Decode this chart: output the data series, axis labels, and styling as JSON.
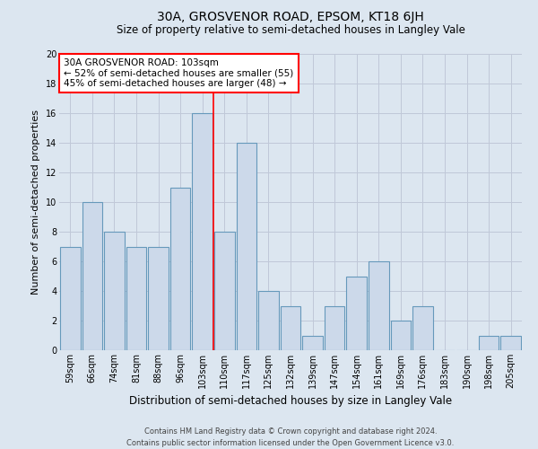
{
  "title": "30A, GROSVENOR ROAD, EPSOM, KT18 6JH",
  "subtitle": "Size of property relative to semi-detached houses in Langley Vale",
  "xlabel": "Distribution of semi-detached houses by size in Langley Vale",
  "ylabel": "Number of semi-detached properties",
  "footer_line1": "Contains HM Land Registry data © Crown copyright and database right 2024.",
  "footer_line2": "Contains public sector information licensed under the Open Government Licence v3.0.",
  "bin_labels": [
    "59sqm",
    "66sqm",
    "74sqm",
    "81sqm",
    "88sqm",
    "96sqm",
    "103sqm",
    "110sqm",
    "117sqm",
    "125sqm",
    "132sqm",
    "139sqm",
    "147sqm",
    "154sqm",
    "161sqm",
    "169sqm",
    "176sqm",
    "183sqm",
    "190sqm",
    "198sqm",
    "205sqm"
  ],
  "bar_values": [
    7,
    10,
    8,
    7,
    7,
    11,
    16,
    8,
    14,
    4,
    3,
    1,
    3,
    5,
    6,
    2,
    3,
    0,
    0,
    1,
    1
  ],
  "bar_color": "#ccd9ea",
  "bar_edge_color": "#6699bb",
  "red_line_x": 6.5,
  "annotation_title": "30A GROSVENOR ROAD: 103sqm",
  "annotation_line1": "← 52% of semi-detached houses are smaller (55)",
  "annotation_line2": "45% of semi-detached houses are larger (48) →",
  "annotation_box_color": "white",
  "annotation_box_edge": "red",
  "ylim": [
    0,
    20
  ],
  "yticks": [
    0,
    2,
    4,
    6,
    8,
    10,
    12,
    14,
    16,
    18,
    20
  ],
  "grid_color": "#c0c8d8",
  "background_color": "#dce6f0",
  "title_fontsize": 10,
  "subtitle_fontsize": 8.5,
  "ylabel_fontsize": 8,
  "xlabel_fontsize": 8.5,
  "tick_fontsize": 7,
  "footer_fontsize": 6,
  "annot_fontsize": 7.5
}
